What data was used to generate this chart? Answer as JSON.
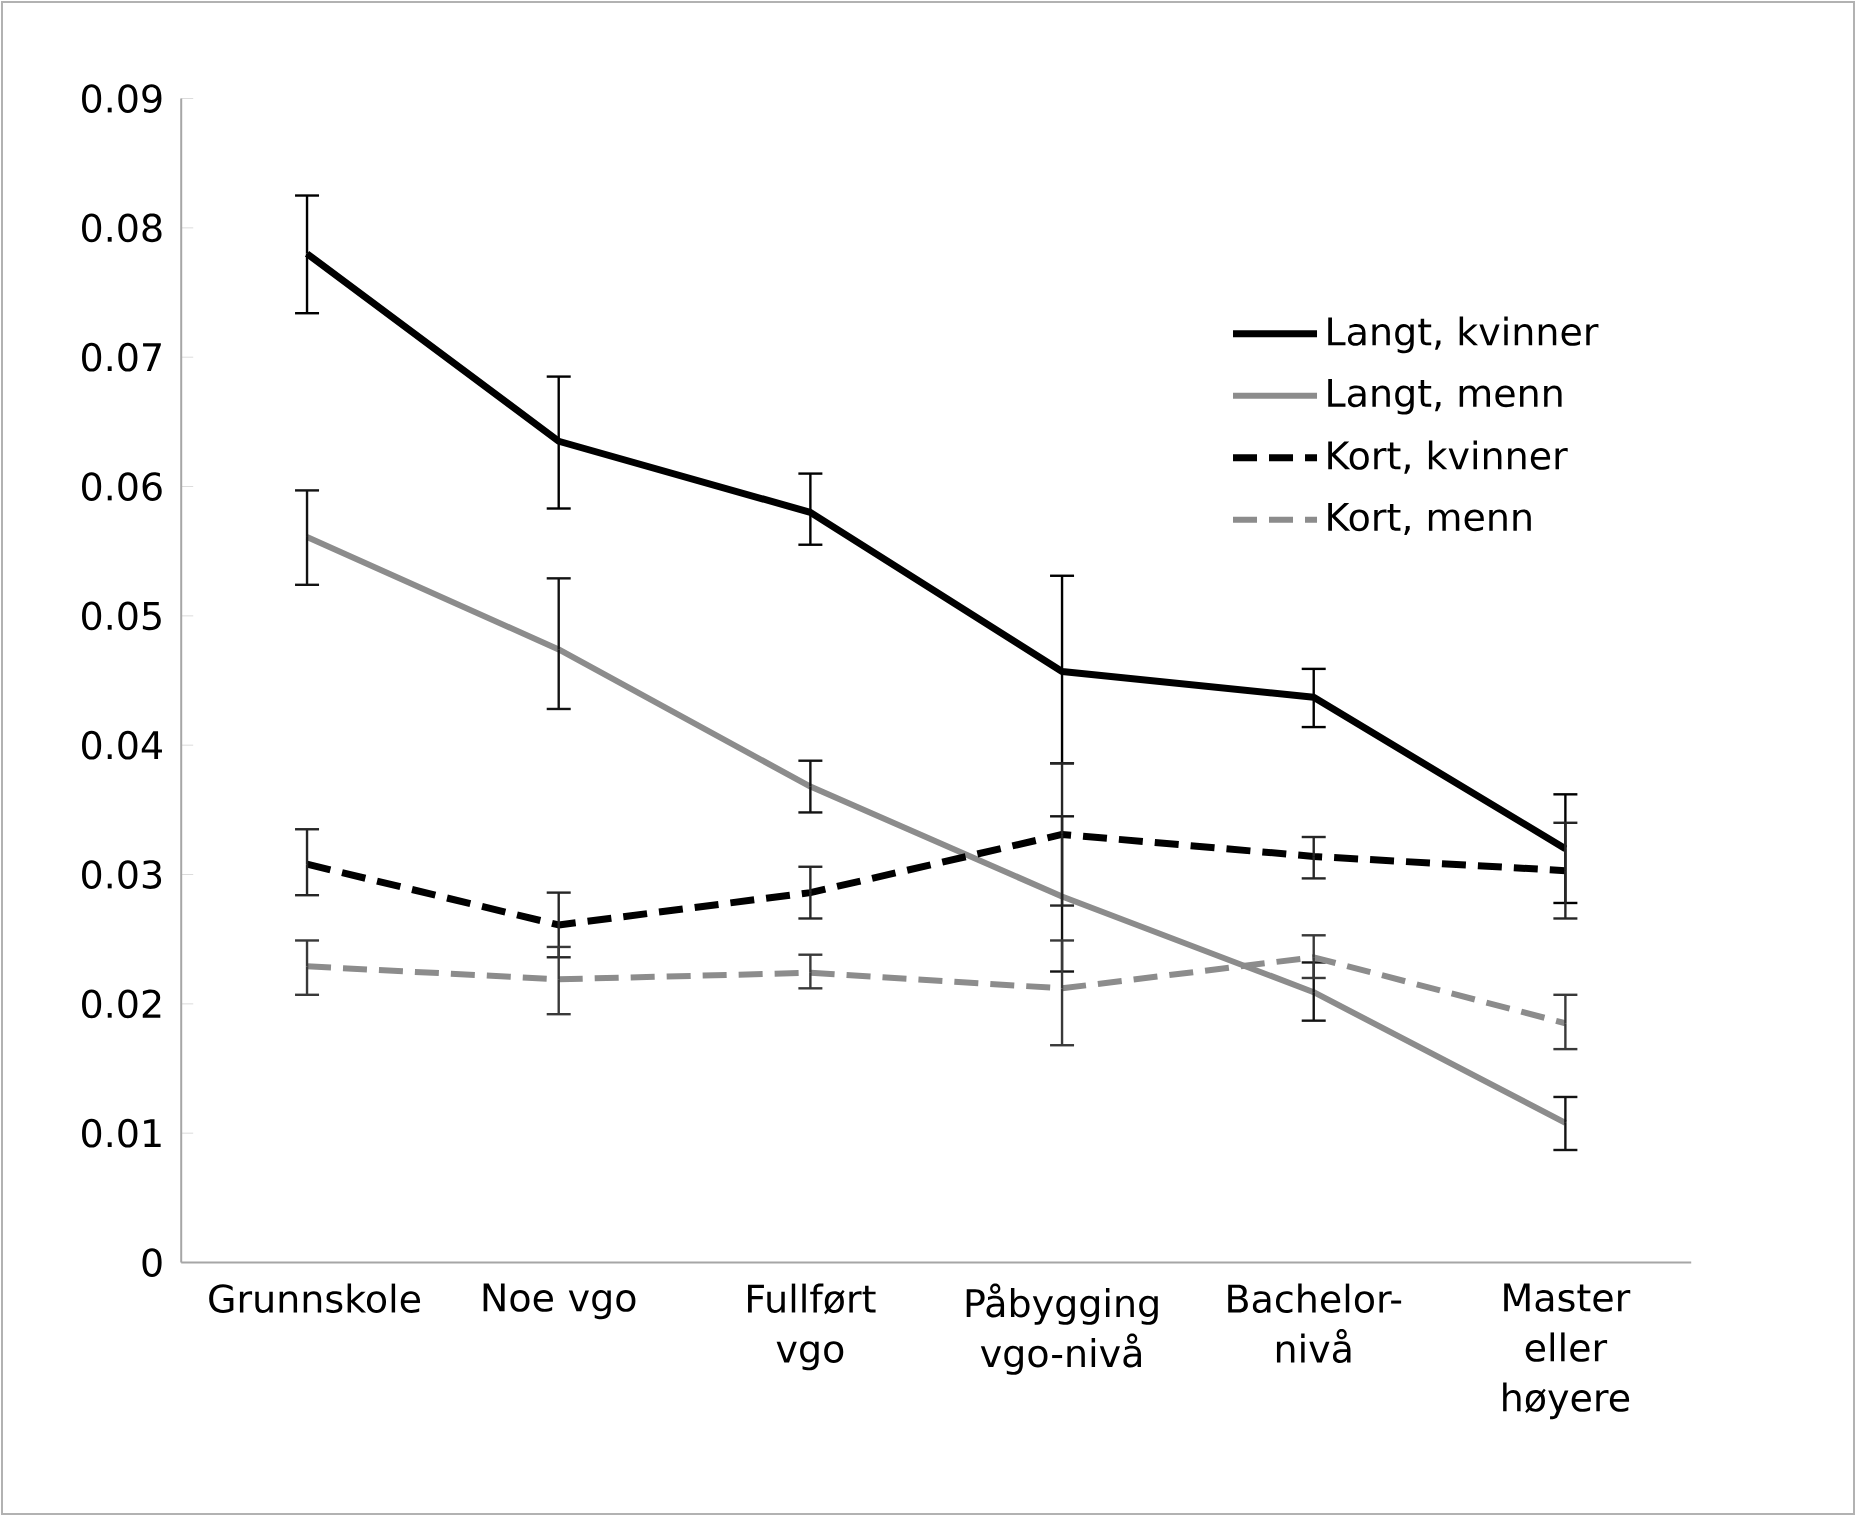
{
  "chart_data": {
    "type": "line",
    "categories": [
      "Grunnskole",
      "Noe vgo",
      "Fullført vgo",
      "Påbygging vgo-nivå",
      "Bachelor-nivå",
      "Master eller høyere"
    ],
    "ylim": [
      0,
      0.09
    ],
    "yticks": [
      0,
      0.01,
      0.02,
      0.03,
      0.04,
      0.05,
      0.06,
      0.07,
      0.08,
      0.09
    ],
    "legend": "top right",
    "grid": false,
    "series": [
      {
        "name": "Langt, kvinner",
        "color": "#000000",
        "line_style": "solid",
        "values": [
          0.078,
          0.0635,
          0.058,
          0.0457,
          0.0437,
          0.032
        ],
        "errors": [
          [
            0.0734,
            0.0825
          ],
          [
            0.0583,
            0.0685
          ],
          [
            0.0555,
            0.061
          ],
          [
            0.0386,
            0.0531
          ],
          [
            0.0414,
            0.0459
          ],
          [
            0.0278,
            0.0362
          ]
        ]
      },
      {
        "name": "Langt, menn",
        "color": "#8c8c8c",
        "line_style": "solid",
        "values": [
          0.0561,
          0.0474,
          0.0368,
          0.0283,
          0.0209,
          0.0108
        ],
        "errors": [
          [
            0.0524,
            0.0597
          ],
          [
            0.0428,
            0.0529
          ],
          [
            0.0348,
            0.0388
          ],
          [
            0.0225,
            0.0345
          ],
          [
            0.0187,
            0.0232
          ],
          [
            0.0087,
            0.0128
          ]
        ]
      },
      {
        "name": "Kort, kvinner",
        "color": "#000000",
        "line_style": "dashed",
        "values": [
          0.0308,
          0.0261,
          0.0286,
          0.0331,
          0.0314,
          0.0303
        ],
        "errors": [
          [
            0.0284,
            0.0335
          ],
          [
            0.0236,
            0.0286
          ],
          [
            0.0266,
            0.0306
          ],
          [
            0.0276,
            0.0386
          ],
          [
            0.0297,
            0.0329
          ],
          [
            0.0266,
            0.034
          ]
        ]
      },
      {
        "name": "Kort, menn",
        "color": "#8c8c8c",
        "line_style": "dashed",
        "values": [
          0.0229,
          0.0219,
          0.0224,
          0.0212,
          0.0236,
          0.0185
        ],
        "errors": [
          [
            0.0207,
            0.0249
          ],
          [
            0.0192,
            0.0244
          ],
          [
            0.0212,
            0.0238
          ],
          [
            0.0168,
            0.0249
          ],
          [
            0.022,
            0.0253
          ],
          [
            0.0165,
            0.0207
          ]
        ]
      }
    ]
  }
}
